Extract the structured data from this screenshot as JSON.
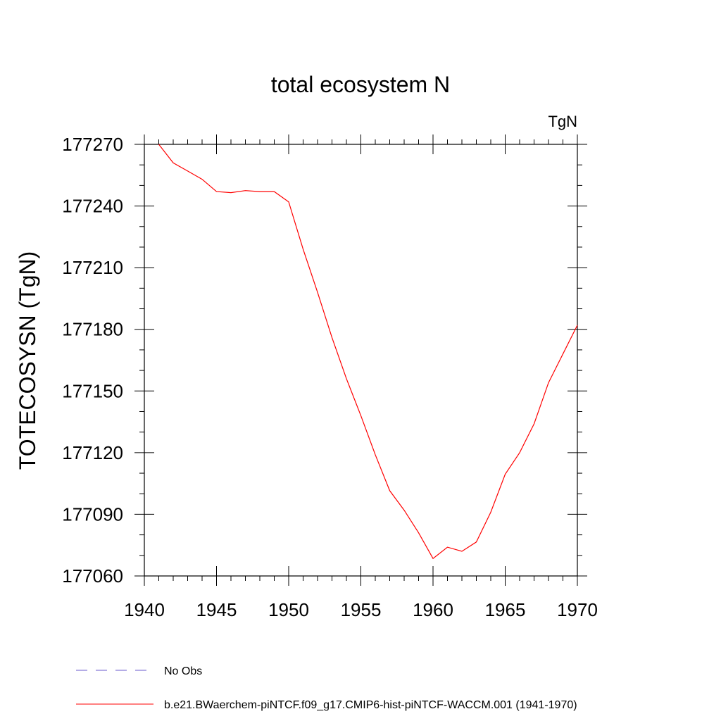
{
  "chart_data": {
    "type": "line",
    "title": "total ecosystem N",
    "units_label": "TgN",
    "ylabel": "TOTECOSYSN  (TgN)",
    "xlabel": "",
    "xlim": [
      1940,
      1970
    ],
    "ylim": [
      177060,
      177270
    ],
    "x_ticks": [
      1940,
      1945,
      1950,
      1955,
      1960,
      1965,
      1970
    ],
    "y_ticks": [
      177060,
      177090,
      177120,
      177150,
      177180,
      177210,
      177240,
      177270
    ],
    "grid": false,
    "legend_position": "bottom",
    "series": [
      {
        "name": "No Obs",
        "color": "#6a5acd",
        "style": "dashed",
        "x": [],
        "y": []
      },
      {
        "name": "b.e21.BWaerchem-piNTCF.f09_g17.CMIP6-hist-piNTCF-WACCM.001 (1941-1970)",
        "color": "#ff0000",
        "style": "solid",
        "x": [
          1941,
          1942,
          1943,
          1944,
          1945,
          1946,
          1947,
          1948,
          1949,
          1950,
          1951,
          1952,
          1953,
          1954,
          1955,
          1956,
          1957,
          1958,
          1959,
          1960,
          1961,
          1962,
          1963,
          1964,
          1965,
          1966,
          1967,
          1968,
          1969,
          1970
        ],
        "y": [
          177270,
          177261,
          177257,
          177253,
          177247,
          177246.5,
          177247.5,
          177247,
          177247,
          177242,
          177219,
          177198,
          177176,
          177156,
          177138,
          177119,
          177101.5,
          177092,
          177081,
          177068.5,
          177074,
          177072,
          177076.5,
          177091,
          177109.5,
          177120,
          177134,
          177154,
          177168,
          177182
        ]
      }
    ]
  }
}
